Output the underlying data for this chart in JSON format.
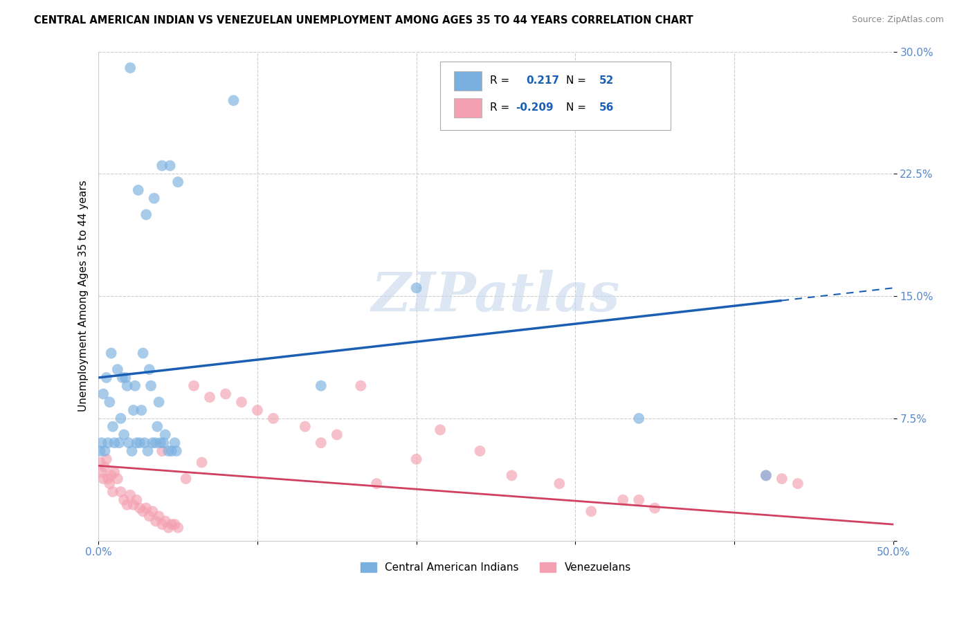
{
  "title": "CENTRAL AMERICAN INDIAN VS VENEZUELAN UNEMPLOYMENT AMONG AGES 35 TO 44 YEARS CORRELATION CHART",
  "source": "Source: ZipAtlas.com",
  "ylabel": "Unemployment Among Ages 35 to 44 years",
  "xlim": [
    0.0,
    0.5
  ],
  "ylim": [
    0.0,
    0.3
  ],
  "xticks": [
    0.0,
    0.1,
    0.2,
    0.3,
    0.4,
    0.5
  ],
  "xticklabels": [
    "0.0%",
    "",
    "",
    "",
    "",
    "50.0%"
  ],
  "yticks": [
    0.0,
    0.075,
    0.15,
    0.225,
    0.3
  ],
  "yticklabels": [
    "",
    "7.5%",
    "15.0%",
    "22.5%",
    "30.0%"
  ],
  "legend_labels": [
    "Central American Indians",
    "Venezuelans"
  ],
  "blue_color": "#7ab0e0",
  "pink_color": "#f4a0b0",
  "blue_line_color": "#1a5fb4",
  "pink_line_color": "#d04060",
  "watermark_text": "ZIPatlas",
  "blue_scatter_x": [
    0.02,
    0.03,
    0.025,
    0.04,
    0.035,
    0.05,
    0.045,
    0.005,
    0.008,
    0.012,
    0.015,
    0.018,
    0.022,
    0.028,
    0.032,
    0.038,
    0.042,
    0.048,
    0.003,
    0.007,
    0.013,
    0.017,
    0.023,
    0.027,
    0.033,
    0.037,
    0.002,
    0.004,
    0.006,
    0.009,
    0.01,
    0.014,
    0.016,
    0.019,
    0.021,
    0.024,
    0.026,
    0.029,
    0.031,
    0.034,
    0.036,
    0.039,
    0.041,
    0.044,
    0.046,
    0.049,
    0.001,
    0.2,
    0.34,
    0.42,
    0.085,
    0.14
  ],
  "blue_scatter_y": [
    0.29,
    0.2,
    0.215,
    0.23,
    0.21,
    0.22,
    0.23,
    0.1,
    0.115,
    0.105,
    0.1,
    0.095,
    0.08,
    0.115,
    0.105,
    0.085,
    0.065,
    0.06,
    0.09,
    0.085,
    0.06,
    0.1,
    0.095,
    0.08,
    0.095,
    0.07,
    0.06,
    0.055,
    0.06,
    0.07,
    0.06,
    0.075,
    0.065,
    0.06,
    0.055,
    0.06,
    0.06,
    0.06,
    0.055,
    0.06,
    0.06,
    0.06,
    0.06,
    0.055,
    0.055,
    0.055,
    0.055,
    0.155,
    0.075,
    0.04,
    0.27,
    0.095
  ],
  "pink_scatter_x": [
    0.001,
    0.002,
    0.003,
    0.004,
    0.005,
    0.006,
    0.007,
    0.008,
    0.009,
    0.01,
    0.012,
    0.014,
    0.016,
    0.018,
    0.02,
    0.022,
    0.024,
    0.026,
    0.028,
    0.03,
    0.032,
    0.034,
    0.036,
    0.038,
    0.04,
    0.042,
    0.044,
    0.046,
    0.048,
    0.05,
    0.06,
    0.07,
    0.08,
    0.09,
    0.1,
    0.11,
    0.13,
    0.15,
    0.165,
    0.2,
    0.215,
    0.24,
    0.26,
    0.29,
    0.33,
    0.35,
    0.04,
    0.055,
    0.065,
    0.14,
    0.175,
    0.31,
    0.42,
    0.43,
    0.44,
    0.34
  ],
  "pink_scatter_y": [
    0.048,
    0.042,
    0.038,
    0.045,
    0.05,
    0.038,
    0.035,
    0.04,
    0.03,
    0.042,
    0.038,
    0.03,
    0.025,
    0.022,
    0.028,
    0.022,
    0.025,
    0.02,
    0.018,
    0.02,
    0.015,
    0.018,
    0.012,
    0.015,
    0.01,
    0.012,
    0.008,
    0.01,
    0.01,
    0.008,
    0.095,
    0.088,
    0.09,
    0.085,
    0.08,
    0.075,
    0.07,
    0.065,
    0.095,
    0.05,
    0.068,
    0.055,
    0.04,
    0.035,
    0.025,
    0.02,
    0.055,
    0.038,
    0.048,
    0.06,
    0.035,
    0.018,
    0.04,
    0.038,
    0.035,
    0.025
  ]
}
